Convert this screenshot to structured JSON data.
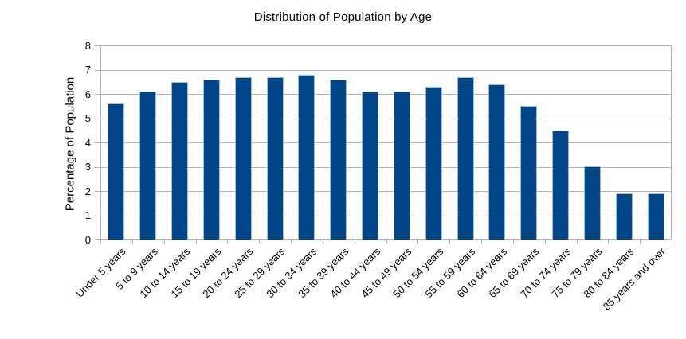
{
  "chart_data": {
    "type": "bar",
    "title": "Distribution of Population by Age",
    "xlabel": "",
    "ylabel": "Percentage of Population",
    "categories": [
      "Under 5 years",
      "5 to 9 years",
      "10 to 14 years",
      "15 to 19 years",
      "20 to 24 years",
      "25 to 29 years",
      "30 to 34 years",
      "35 to 39 years",
      "40 to 44 years",
      "45 to 49 years",
      "50 to 54 years",
      "55 to 59 years",
      "60 to 64 years",
      "65 to 69 years",
      "70 to 74 years",
      "75 to 79 years",
      "80 to 84 years",
      "85 years and over"
    ],
    "values": [
      5.6,
      6.1,
      6.5,
      6.6,
      6.7,
      6.7,
      6.8,
      6.6,
      6.1,
      6.1,
      6.3,
      6.7,
      6.4,
      5.5,
      4.5,
      3.0,
      1.9,
      1.9
    ],
    "ylim": [
      0,
      8
    ],
    "yticks": [
      0,
      1,
      2,
      3,
      4,
      5,
      6,
      7,
      8
    ],
    "grid": true,
    "legend": false,
    "x_label_rotation_deg": -45,
    "colors": {
      "bar_fill": "#004586",
      "bar_border": "#a6bdd9",
      "gridline": "#b3b3b3",
      "axis": "#b3b3b3",
      "text": "#000000",
      "background": "#ffffff"
    }
  }
}
